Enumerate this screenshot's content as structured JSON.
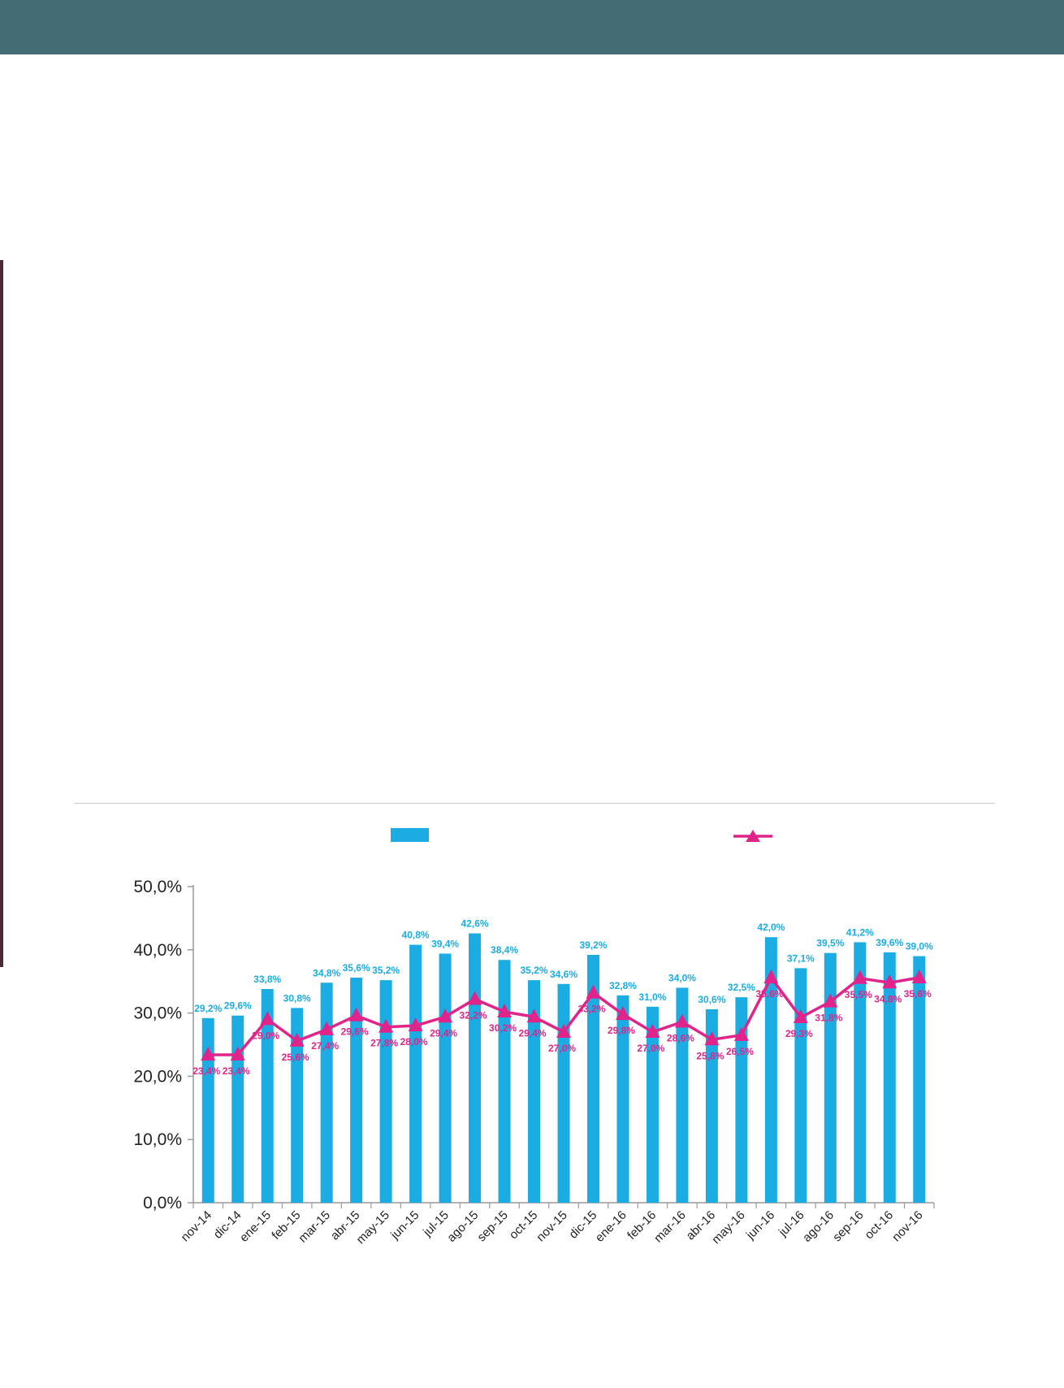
{
  "colors": {
    "header_band": "#436c74",
    "side_bar": "#4a2a35",
    "bar_series": "#1aace2",
    "line_series": "#e0248a",
    "axis": "#9a9a9a"
  },
  "chart_data": {
    "type": "bar",
    "title": "",
    "xlabel": "",
    "ylabel": "",
    "ylim": [
      0,
      50
    ],
    "y_ticks": [
      "0,0%",
      "10,0%",
      "20,0%",
      "30,0%",
      "40,0%",
      "50,0%"
    ],
    "grid": false,
    "legend_position": "top",
    "categories": [
      "nov-14",
      "dic-14",
      "ene-15",
      "feb-15",
      "mar-15",
      "abr-15",
      "may-15",
      "jun-15",
      "jul-15",
      "ago-15",
      "sep-15",
      "oct-15",
      "nov-15",
      "dic-15",
      "ene-16",
      "feb-16",
      "mar-16",
      "abr-16",
      "may-16",
      "jun-16",
      "jul-16",
      "ago-16",
      "sep-16",
      "oct-16",
      "nov-16"
    ],
    "series": [
      {
        "type": "bar",
        "values": [
          29.2,
          29.6,
          33.8,
          30.8,
          34.8,
          35.6,
          35.2,
          40.8,
          39.4,
          42.6,
          38.4,
          35.2,
          34.6,
          39.2,
          32.8,
          31.0,
          34.0,
          30.6,
          32.5,
          42.0,
          37.1,
          39.5,
          41.2,
          39.6,
          39.0
        ],
        "labels": [
          "29,2%",
          "29,6%",
          "33,8%",
          "30,8%",
          "34,8%",
          "35,6%",
          "35,2%",
          "40,8%",
          "39,4%",
          "42,6%",
          "38,4%",
          "35,2%",
          "34,6%",
          "39,2%",
          "32,8%",
          "31,0%",
          "34,0%",
          "30,6%",
          "32,5%",
          "42,0%",
          "37,1%",
          "39,5%",
          "41,2%",
          "39,6%",
          "39,0%"
        ]
      },
      {
        "type": "line",
        "marker": "triangle",
        "values": [
          23.4,
          23.4,
          29.0,
          25.6,
          27.4,
          29.6,
          27.8,
          28.0,
          29.4,
          32.2,
          30.2,
          29.4,
          27.0,
          33.2,
          29.8,
          27.0,
          28.6,
          25.8,
          26.5,
          35.6,
          29.3,
          31.8,
          35.5,
          34.8,
          35.6
        ],
        "labels": [
          "23,4%",
          "23,4%",
          "29,0%",
          "25,6%",
          "27,4%",
          "29,6%",
          "27,8%",
          "28,0%",
          "29,4%",
          "32,2%",
          "30,2%",
          "29,4%",
          "27,0%",
          "33,2%",
          "29,8%",
          "27,0%",
          "28,6%",
          "25,8%",
          "26,5%",
          "35,6%",
          "29,3%",
          "31,8%",
          "35,5%",
          "34,8%",
          "35,6%"
        ]
      }
    ]
  }
}
